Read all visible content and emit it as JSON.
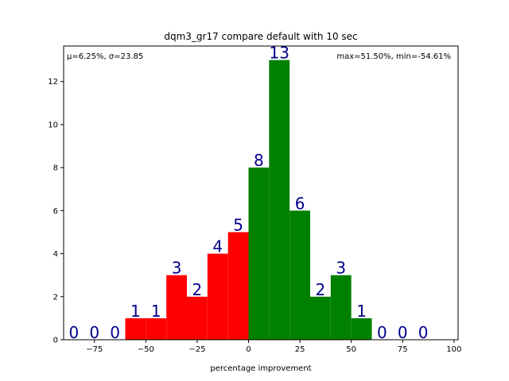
{
  "chart_data": {
    "type": "bar",
    "title": "dqm3_gr17 compare default with 10 sec",
    "xlabel": "percentage improvement",
    "ylabel": "",
    "xlim": [
      -90,
      102
    ],
    "ylim": [
      0,
      13.65
    ],
    "xticks": [
      -75,
      -50,
      -25,
      0,
      25,
      50,
      75,
      100
    ],
    "yticks": [
      0,
      2,
      4,
      6,
      8,
      10,
      12
    ],
    "bin_width": 10,
    "bins": [
      {
        "left": -90,
        "count": 0,
        "color": "#ff0000"
      },
      {
        "left": -80,
        "count": 0,
        "color": "#ff0000"
      },
      {
        "left": -70,
        "count": 0,
        "color": "#ff0000"
      },
      {
        "left": -60,
        "count": 1,
        "color": "#ff0000"
      },
      {
        "left": -50,
        "count": 1,
        "color": "#ff0000"
      },
      {
        "left": -40,
        "count": 3,
        "color": "#ff0000"
      },
      {
        "left": -30,
        "count": 2,
        "color": "#ff0000"
      },
      {
        "left": -20,
        "count": 4,
        "color": "#ff0000"
      },
      {
        "left": -10,
        "count": 5,
        "color": "#ff0000"
      },
      {
        "left": 0,
        "count": 8,
        "color": "#008000"
      },
      {
        "left": 10,
        "count": 13,
        "color": "#008000"
      },
      {
        "left": 20,
        "count": 6,
        "color": "#008000"
      },
      {
        "left": 30,
        "count": 2,
        "color": "#008000"
      },
      {
        "left": 40,
        "count": 3,
        "color": "#008000"
      },
      {
        "left": 50,
        "count": 1,
        "color": "#008000"
      },
      {
        "left": 60,
        "count": 0,
        "color": "#008000"
      },
      {
        "left": 70,
        "count": 0,
        "color": "#008000"
      },
      {
        "left": 80,
        "count": 0,
        "color": "#008000"
      }
    ],
    "annotations": {
      "stats_left": "μ=6.25%, σ=23.85",
      "stats_right": "max=51.50%, min=-54.61%"
    },
    "label_color": "#00008b",
    "grid": false,
    "legend": "none"
  }
}
